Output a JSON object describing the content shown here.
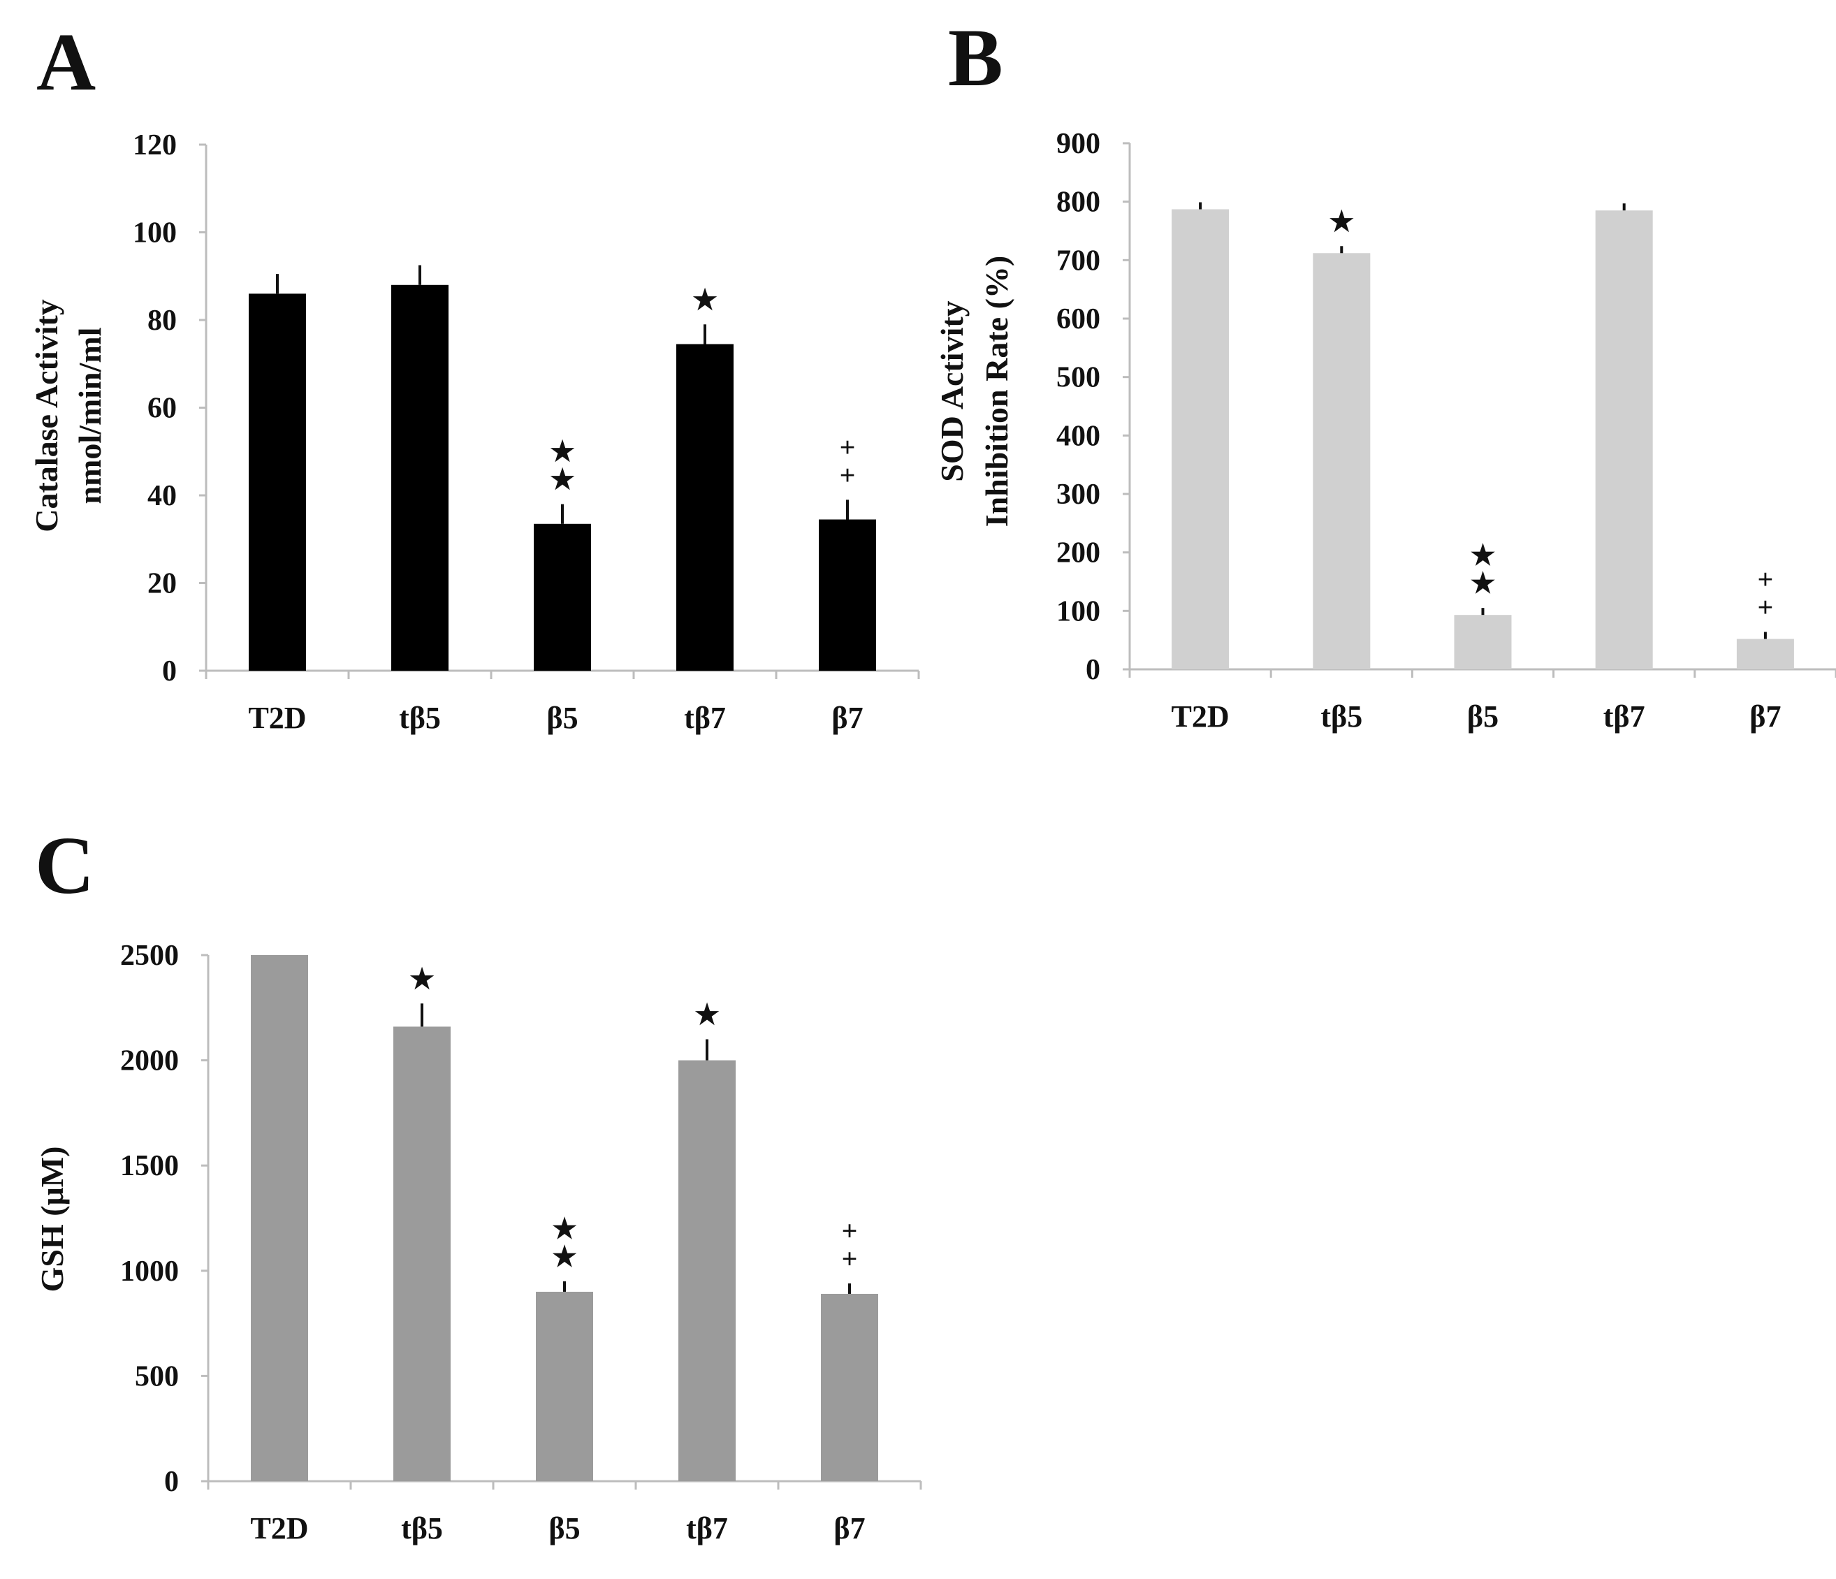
{
  "figure": {
    "panel_labels": [
      "A",
      "B",
      "C"
    ]
  },
  "chart_data": [
    {
      "panel": "A",
      "type": "bar",
      "categories": [
        "T2D",
        "tβ5",
        "β5",
        "tβ7",
        "β7"
      ],
      "values": [
        86,
        88,
        33.5,
        74.5,
        34.5
      ],
      "errors": [
        4.5,
        4.5,
        4.5,
        4.5,
        4.5
      ],
      "ylim": [
        0,
        120
      ],
      "yticks": [
        0,
        20,
        40,
        60,
        80,
        100,
        120
      ],
      "ylabel": [
        "Catalase Activity",
        "nmol/min/ml"
      ],
      "xlabel": "",
      "bar_color": "#000000",
      "significance": [
        "",
        "",
        "**",
        "*",
        "++"
      ]
    },
    {
      "panel": "B",
      "type": "bar",
      "categories": [
        "T2D",
        "tβ5",
        "β5",
        "tβ7",
        "β7"
      ],
      "values": [
        787,
        712,
        93,
        785,
        52
      ],
      "errors": [
        12,
        12,
        12,
        12,
        12
      ],
      "ylim": [
        0,
        900
      ],
      "yticks": [
        0,
        100,
        200,
        300,
        400,
        500,
        600,
        700,
        800,
        900
      ],
      "ylabel": [
        "SOD  Activity",
        "Inhibition Rate (%)"
      ],
      "xlabel": "",
      "bar_color": "#d0d0d0",
      "significance": [
        "",
        "*",
        "**",
        "",
        "++"
      ]
    },
    {
      "panel": "C",
      "type": "bar",
      "categories": [
        "T2D",
        "tβ5",
        "β5",
        "tβ7",
        "β7"
      ],
      "values": [
        2500,
        2160,
        900,
        2000,
        890
      ],
      "errors": [
        0,
        110,
        50,
        100,
        50
      ],
      "ylim": [
        0,
        2500
      ],
      "yticks": [
        0,
        500,
        1000,
        1500,
        2000,
        2500
      ],
      "ylabel": [
        "GSH (μM)"
      ],
      "xlabel": "",
      "bar_color": "#9b9b9b",
      "significance": [
        "",
        "*",
        "**",
        "*",
        "++"
      ]
    }
  ]
}
